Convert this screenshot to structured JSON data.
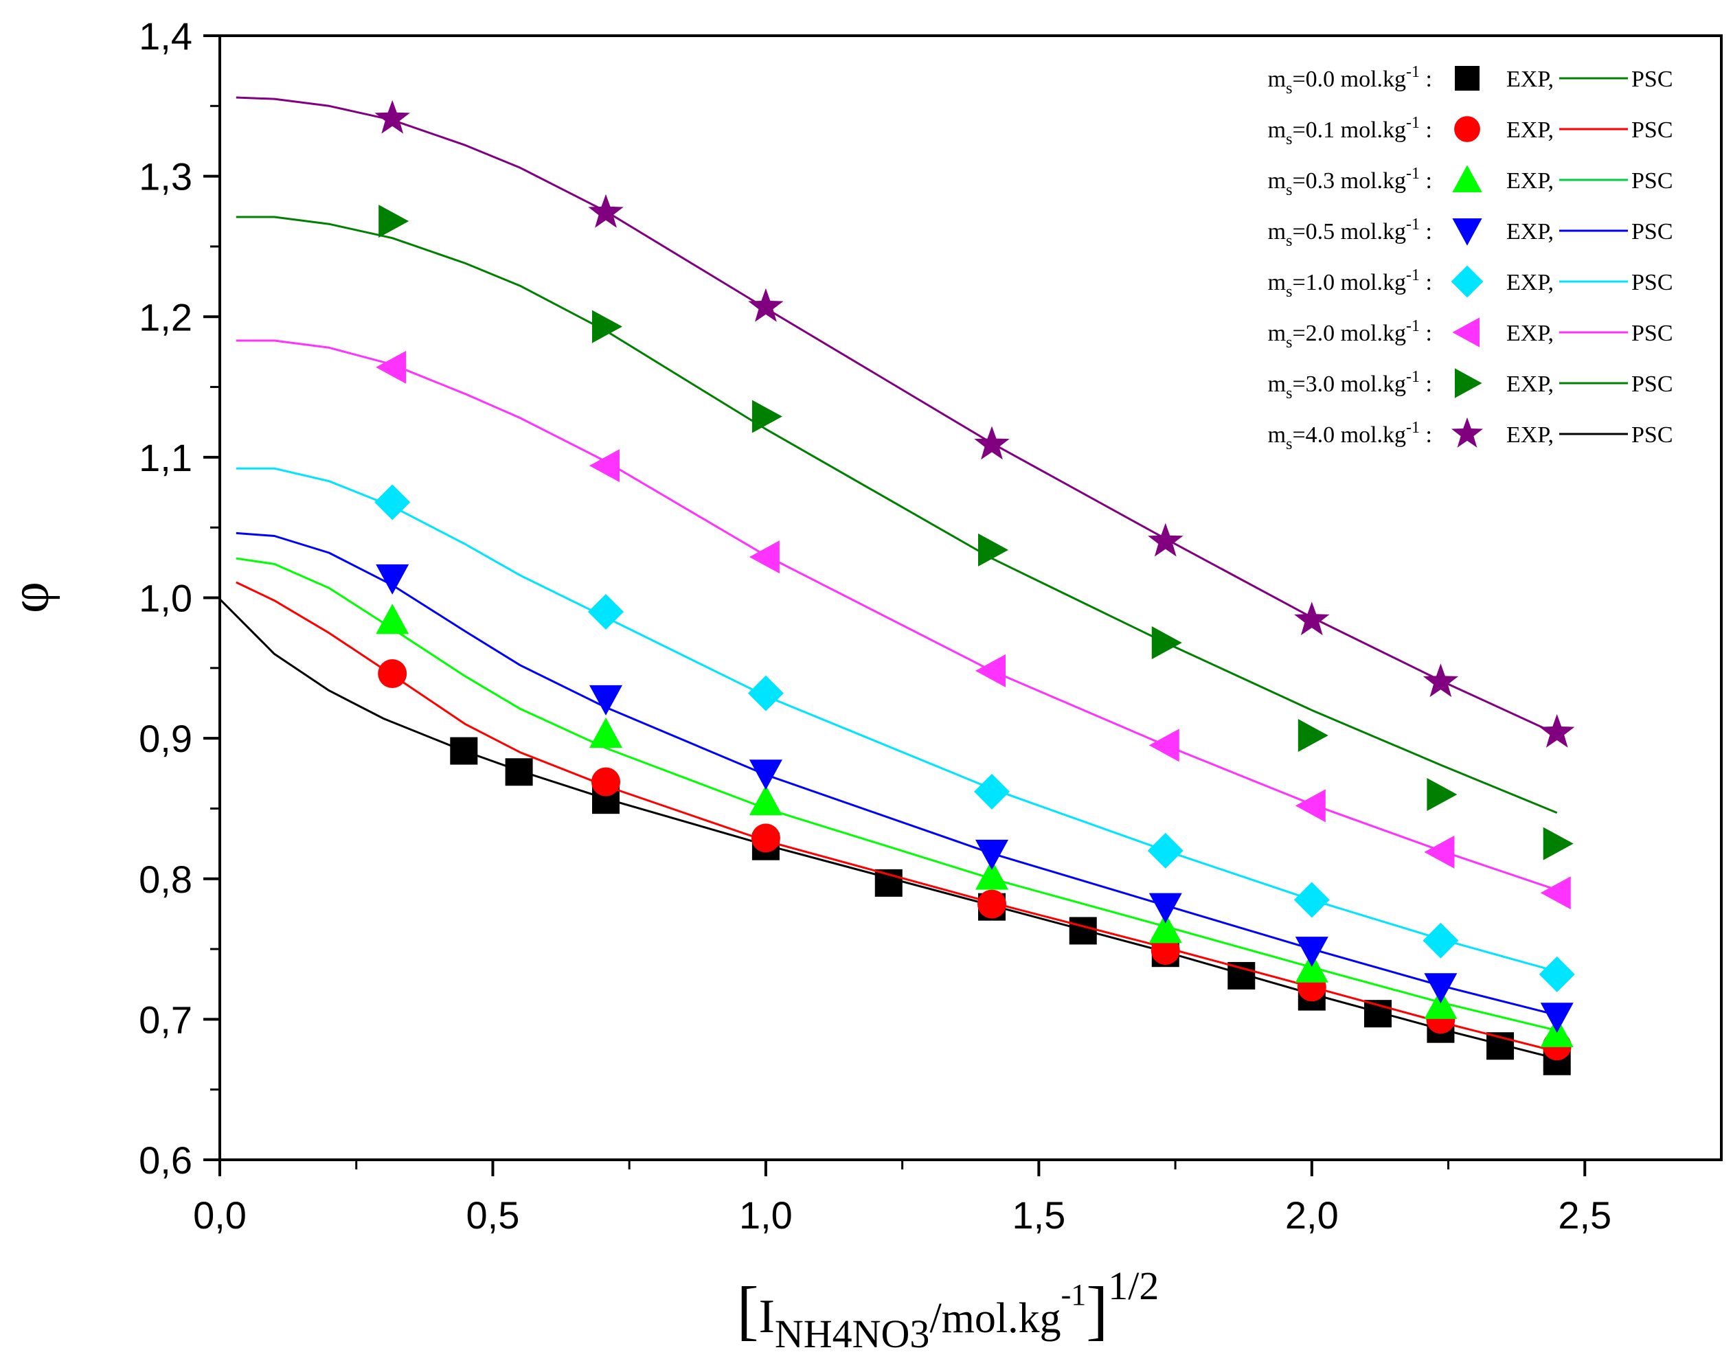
{
  "chart_data": {
    "type": "scatter",
    "title": "",
    "xlabel": {
      "bracket_open": "[",
      "main": "I",
      "sub": "NH4NO3",
      "mid": "/mol.kg",
      "sup": "-1",
      "bracket_close": "]",
      "exp": "1/2"
    },
    "ylabel": "φ",
    "xlim": [
      0.0,
      2.75
    ],
    "ylim": [
      0.6,
      1.4
    ],
    "x_ticks": [
      0.0,
      0.5,
      1.0,
      1.5,
      2.0,
      2.5
    ],
    "x_tick_labels": [
      "0,0",
      "0,5",
      "1,0",
      "1,5",
      "2,0",
      "2,5"
    ],
    "y_ticks": [
      0.6,
      0.7,
      0.8,
      0.9,
      1.0,
      1.1,
      1.2,
      1.3,
      1.4
    ],
    "y_tick_labels": [
      "0,6",
      "0,7",
      "0,8",
      "0,9",
      "1,0",
      "1,1",
      "1,2",
      "1,3",
      "1,4"
    ],
    "grid": false,
    "legend_position": "top-right",
    "legend_exp_label": "EXP,",
    "legend_fit_label": "PSC",
    "series": [
      {
        "label_prefix": "m",
        "label_sub": "s",
        "label_value": "=0.0 mol.kg",
        "label_sup": "-1",
        "label_suffix": " :",
        "marker": "square",
        "marker_color": "#000000",
        "line_color": "#000000",
        "legend_line_color": "#008000",
        "exp_x": [
          0.447,
          0.548,
          0.707,
          1.0,
          1.225,
          1.414,
          1.581,
          1.732,
          1.871,
          2.0,
          2.121,
          2.236,
          2.345,
          2.449
        ],
        "exp_y": [
          0.891,
          0.876,
          0.856,
          0.823,
          0.797,
          0.78,
          0.763,
          0.747,
          0.731,
          0.716,
          0.704,
          0.693,
          0.681,
          0.67
        ],
        "fit_x": [
          0.0,
          0.1,
          0.2,
          0.3,
          0.447,
          0.548,
          0.707,
          1.0,
          1.414,
          1.732,
          2.0,
          2.236,
          2.449
        ],
        "fit_y": [
          0.999,
          0.96,
          0.934,
          0.914,
          0.891,
          0.877,
          0.857,
          0.824,
          0.781,
          0.748,
          0.718,
          0.693,
          0.672
        ]
      },
      {
        "label_prefix": "m",
        "label_sub": "s",
        "label_value": "=0.1 mol.kg",
        "label_sup": "-1",
        "label_suffix": " :",
        "marker": "circle",
        "marker_color": "#ff0000",
        "line_color": "#ff0000",
        "legend_line_color": "#ff0000",
        "exp_x": [
          0.316,
          0.707,
          1.0,
          1.414,
          1.732,
          2.0,
          2.236,
          2.449
        ],
        "exp_y": [
          0.946,
          0.869,
          0.829,
          0.782,
          0.749,
          0.723,
          0.7,
          0.681
        ],
        "fit_x": [
          0.03,
          0.1,
          0.2,
          0.316,
          0.45,
          0.55,
          0.707,
          1.0,
          1.414,
          1.732,
          2.0,
          2.236,
          2.449
        ],
        "fit_y": [
          1.011,
          0.998,
          0.975,
          0.945,
          0.91,
          0.89,
          0.866,
          0.827,
          0.783,
          0.751,
          0.723,
          0.698,
          0.677
        ]
      },
      {
        "label_prefix": "m",
        "label_sub": "s",
        "label_value": "=0.3 mol.kg",
        "label_sup": "-1",
        "label_suffix": " :",
        "marker": "triangle-up",
        "marker_color": "#00ff00",
        "line_color": "#00ff00",
        "legend_line_color": "#00cc44",
        "exp_x": [
          0.316,
          0.707,
          1.0,
          1.414,
          1.732,
          2.0,
          2.236,
          2.449
        ],
        "exp_y": [
          0.984,
          0.903,
          0.855,
          0.802,
          0.764,
          0.736,
          0.71,
          0.69
        ],
        "fit_x": [
          0.03,
          0.1,
          0.2,
          0.316,
          0.45,
          0.55,
          0.707,
          1.0,
          1.414,
          1.732,
          2.0,
          2.236,
          2.449
        ],
        "fit_y": [
          1.028,
          1.024,
          1.007,
          0.978,
          0.944,
          0.921,
          0.893,
          0.85,
          0.8,
          0.766,
          0.737,
          0.712,
          0.692
        ]
      },
      {
        "label_prefix": "m",
        "label_sub": "s",
        "label_value": "=0.5 mol.kg",
        "label_sup": "-1",
        "label_suffix": " :",
        "marker": "triangle-down",
        "marker_color": "#0000ff",
        "line_color": "#0000ff",
        "legend_line_color": "#0000ff",
        "exp_x": [
          0.316,
          0.707,
          1.0,
          1.414,
          1.732,
          2.0,
          2.236,
          2.449
        ],
        "exp_y": [
          1.014,
          0.928,
          0.875,
          0.818,
          0.78,
          0.749,
          0.723,
          0.702
        ],
        "fit_x": [
          0.03,
          0.1,
          0.2,
          0.316,
          0.45,
          0.55,
          0.707,
          1.0,
          1.414,
          1.732,
          2.0,
          2.236,
          2.449
        ],
        "fit_y": [
          1.046,
          1.044,
          1.032,
          1.009,
          0.976,
          0.952,
          0.922,
          0.874,
          0.818,
          0.781,
          0.75,
          0.724,
          0.703
        ]
      },
      {
        "label_prefix": "m",
        "label_sub": "s",
        "label_value": "=1.0 mol.kg",
        "label_sup": "-1",
        "label_suffix": " :",
        "marker": "diamond",
        "marker_color": "#00e5ff",
        "line_color": "#00e5ff",
        "legend_line_color": "#00e5ff",
        "exp_x": [
          0.316,
          0.707,
          1.0,
          1.414,
          1.732,
          2.0,
          2.236,
          2.449
        ],
        "exp_y": [
          1.068,
          0.99,
          0.932,
          0.862,
          0.82,
          0.785,
          0.756,
          0.732
        ],
        "fit_x": [
          0.03,
          0.1,
          0.2,
          0.316,
          0.45,
          0.55,
          0.707,
          1.0,
          1.414,
          1.732,
          2.0,
          2.236,
          2.449
        ],
        "fit_y": [
          1.092,
          1.092,
          1.083,
          1.065,
          1.038,
          1.016,
          0.986,
          0.93,
          0.864,
          0.82,
          0.785,
          0.757,
          0.734
        ]
      },
      {
        "label_prefix": "m",
        "label_sub": "s",
        "label_value": "=2.0 mol.kg",
        "label_sup": "-1",
        "label_suffix": " :",
        "marker": "triangle-left",
        "marker_color": "#ff33ff",
        "line_color": "#ff33ff",
        "legend_line_color": "#ff33ff",
        "exp_x": [
          0.316,
          0.707,
          1.0,
          1.414,
          1.732,
          2.0,
          2.236,
          2.449
        ],
        "exp_y": [
          1.164,
          1.094,
          1.029,
          0.948,
          0.895,
          0.852,
          0.819,
          0.79
        ],
        "fit_x": [
          0.03,
          0.1,
          0.2,
          0.316,
          0.45,
          0.55,
          0.707,
          1.0,
          1.414,
          1.732,
          2.0,
          2.236,
          2.449
        ],
        "fit_y": [
          1.183,
          1.183,
          1.178,
          1.166,
          1.145,
          1.128,
          1.097,
          1.03,
          0.948,
          0.895,
          0.853,
          0.82,
          0.792
        ]
      },
      {
        "label_prefix": "m",
        "label_sub": "s",
        "label_value": "=3.0 mol.kg",
        "label_sup": "-1",
        "label_suffix": " :",
        "marker": "triangle-right",
        "marker_color": "#008000",
        "line_color": "#008000",
        "legend_line_color": "#008000",
        "exp_x": [
          0.316,
          0.707,
          1.0,
          1.414,
          1.732,
          2.0,
          2.236,
          2.449
        ],
        "exp_y": [
          1.268,
          1.193,
          1.129,
          1.034,
          0.968,
          0.902,
          0.86,
          0.825
        ],
        "fit_x": [
          0.03,
          0.1,
          0.2,
          0.316,
          0.45,
          0.55,
          0.707,
          1.0,
          1.414,
          1.732,
          2.0,
          2.236,
          2.449
        ],
        "fit_y": [
          1.271,
          1.271,
          1.266,
          1.256,
          1.238,
          1.222,
          1.19,
          1.12,
          1.028,
          0.968,
          0.92,
          0.881,
          0.847
        ]
      },
      {
        "label_prefix": "m",
        "label_sub": "s",
        "label_value": "=4.0 mol.kg",
        "label_sup": "-1",
        "label_suffix": " :",
        "marker": "star",
        "marker_color": "#800080",
        "line_color": "#800080",
        "legend_line_color": "#000000",
        "exp_x": [
          0.316,
          0.707,
          1.0,
          1.414,
          1.732,
          2.0,
          2.236,
          2.449
        ],
        "exp_y": [
          1.341,
          1.274,
          1.207,
          1.109,
          1.04,
          0.984,
          0.94,
          0.904
        ],
        "fit_x": [
          0.03,
          0.1,
          0.2,
          0.316,
          0.45,
          0.55,
          0.707,
          1.0,
          1.414,
          1.732,
          2.0,
          2.236,
          2.449
        ],
        "fit_y": [
          1.356,
          1.355,
          1.35,
          1.34,
          1.322,
          1.306,
          1.275,
          1.206,
          1.11,
          1.042,
          0.986,
          0.941,
          0.903
        ]
      }
    ]
  }
}
